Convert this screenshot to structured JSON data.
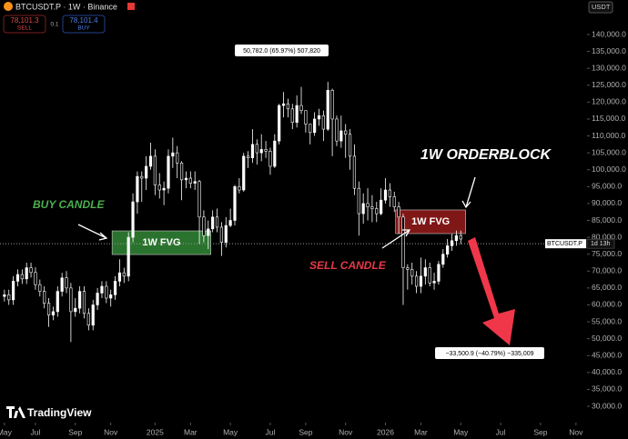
{
  "chart_data": {
    "type": "candlestick",
    "title": "BTCUSDT.P · 1W · Binance",
    "bid": {
      "value": 78101.3,
      "label": "78,101.3",
      "side": "SELL"
    },
    "ask": {
      "value": 78101.4,
      "label": "78,101.4",
      "side": "BUY"
    },
    "spread": "0.1",
    "currency": "USDT",
    "symbol_tag": "BTCUSDT.P",
    "countdown": "1d 13h",
    "brand": "TradingView",
    "candle_color": "#ffffff",
    "candles": {
      "open": [
        62500,
        63000,
        61500,
        67000,
        69000,
        67700,
        71000,
        69600,
        66000,
        64000,
        60500,
        57000,
        58000,
        64000,
        68000,
        65000,
        58000,
        59000,
        64000,
        57500,
        54000,
        60000,
        63500,
        65500,
        62000,
        63000,
        67000,
        69500,
        68500,
        80000,
        90500,
        98000,
        97500,
        101000,
        104000,
        95500,
        94000,
        94500,
        104000,
        105000,
        102000,
        97000,
        97500,
        96000,
        96500,
        86000,
        80500,
        82500,
        86000,
        83000,
        78500,
        83500,
        85000,
        95000,
        94000,
        104000,
        103500,
        107500,
        105000,
        106000,
        105500,
        101000,
        108500,
        119000,
        119500,
        118000,
        114000,
        119000,
        117500,
        113500,
        111000,
        115000,
        116000,
        112000,
        123500,
        115000,
        108500,
        111500,
        110500,
        104000,
        94500,
        87000,
        90000,
        89000,
        88500,
        87000,
        91000,
        94000,
        92000,
        89000,
        86000,
        71000,
        70500,
        68500,
        65500,
        68500,
        71000,
        66500,
        67000,
        72000,
        75000,
        77500,
        79000,
        80500
      ],
      "high": [
        64500,
        64500,
        68500,
        70500,
        70500,
        72500,
        72500,
        71100,
        67500,
        65500,
        62000,
        59500,
        65500,
        69500,
        70000,
        66500,
        62000,
        65500,
        65500,
        59000,
        61500,
        65000,
        67000,
        67000,
        64500,
        68500,
        73500,
        71000,
        81500,
        93000,
        99500,
        99500,
        104000,
        108000,
        106000,
        99000,
        96500,
        106000,
        109500,
        107000,
        102500,
        99500,
        99500,
        99500,
        97000,
        88000,
        85000,
        88000,
        88500,
        84500,
        86000,
        88500,
        95500,
        97500,
        105000,
        105500,
        112000,
        109000,
        110500,
        108500,
        106500,
        110500,
        119500,
        123000,
        121000,
        119500,
        122000,
        124500,
        117500,
        113500,
        117000,
        118000,
        117500,
        126000,
        124000,
        116000,
        116000,
        113500,
        112000,
        107500,
        96500,
        93000,
        94500,
        92500,
        90500,
        94500,
        97500,
        96000,
        93500,
        90500,
        87000,
        72000,
        72500,
        70000,
        74000,
        73500,
        72500,
        69500,
        73000,
        76500,
        79500,
        81000,
        82000,
        82000
      ],
      "low": [
        61000,
        60000,
        60000,
        65500,
        66200,
        66200,
        68100,
        64500,
        62500,
        59000,
        53500,
        55500,
        56500,
        62500,
        63500,
        49000,
        56500,
        57500,
        56000,
        52500,
        52500,
        58500,
        62000,
        60500,
        59500,
        61500,
        65500,
        66500,
        67000,
        78500,
        87000,
        90500,
        94000,
        100000,
        92500,
        91500,
        89500,
        93000,
        100500,
        97500,
        91000,
        94500,
        94500,
        94000,
        78000,
        78500,
        76500,
        81500,
        81500,
        74500,
        77000,
        83000,
        83500,
        93000,
        93500,
        100500,
        102000,
        101500,
        102500,
        103500,
        98500,
        100500,
        107500,
        115500,
        115500,
        112000,
        112500,
        116500,
        111000,
        107500,
        110000,
        113000,
        108500,
        111500,
        104000,
        107000,
        106500,
        103500,
        100000,
        92500,
        80500,
        84000,
        85000,
        84500,
        84500,
        86500,
        90000,
        89000,
        87500,
        81000,
        60000,
        64500,
        66000,
        63500,
        63500,
        66000,
        65500,
        64500,
        66000,
        71000,
        74000,
        76000,
        77500,
        78000
      ],
      "close": [
        63000,
        61500,
        67000,
        69000,
        67700,
        71000,
        69600,
        66000,
        64000,
        60500,
        57000,
        58000,
        64000,
        68000,
        65000,
        58000,
        59000,
        64000,
        57500,
        54000,
        60000,
        63500,
        65500,
        62000,
        63000,
        67000,
        69500,
        68500,
        80000,
        90500,
        98000,
        97500,
        101000,
        104000,
        95500,
        94000,
        94500,
        104000,
        105000,
        102000,
        97000,
        97500,
        96000,
        96500,
        86000,
        80500,
        82500,
        86000,
        83000,
        78500,
        83500,
        85000,
        95000,
        94000,
        104000,
        103500,
        107500,
        105000,
        106000,
        105500,
        101000,
        108500,
        119000,
        119500,
        118000,
        114000,
        119000,
        117500,
        113500,
        111000,
        115000,
        116000,
        112000,
        123500,
        115000,
        108500,
        111500,
        110500,
        104000,
        94500,
        87000,
        90000,
        89000,
        88500,
        87000,
        91000,
        94000,
        92000,
        89000,
        86000,
        71000,
        70500,
        68500,
        65500,
        68500,
        71000,
        66500,
        67000,
        72000,
        75000,
        77500,
        79000,
        80500,
        79500
      ]
    },
    "xlim": [
      -1,
      131.5
    ],
    "xticks": [
      {
        "value": 0,
        "label": "May"
      },
      {
        "value": 7,
        "label": "Jul"
      },
      {
        "value": 16,
        "label": "Sep"
      },
      {
        "value": 24,
        "label": "Nov"
      },
      {
        "value": 34,
        "label": "2025"
      },
      {
        "value": 42,
        "label": "Mar"
      },
      {
        "value": 51,
        "label": "May"
      },
      {
        "value": 60,
        "label": "Jul"
      },
      {
        "value": 68,
        "label": "Sep"
      },
      {
        "value": 77,
        "label": "Nov"
      },
      {
        "value": 86,
        "label": "2026"
      },
      {
        "value": 94,
        "label": "Mar"
      },
      {
        "value": 103,
        "label": "May"
      },
      {
        "value": 112,
        "label": "Jul"
      },
      {
        "value": 121,
        "label": "Sep"
      },
      {
        "value": 129,
        "label": "Nov"
      }
    ],
    "ylim": [
      25160,
      150220
    ],
    "yticks": [
      {
        "value": 30000,
        "label": "30,000.0"
      },
      {
        "value": 35000,
        "label": "35,000.0"
      },
      {
        "value": 40000,
        "label": "40,000.0"
      },
      {
        "value": 45000,
        "label": "45,000.0"
      },
      {
        "value": 50000,
        "label": "50,000.0"
      },
      {
        "value": 55000,
        "label": "55,000.0"
      },
      {
        "value": 60000,
        "label": "60,000.0"
      },
      {
        "value": 65000,
        "label": "65,000.0"
      },
      {
        "value": 70000,
        "label": "70,000.0"
      },
      {
        "value": 75000,
        "label": "75,000.0"
      },
      {
        "value": 80000,
        "label": "80,000.0"
      },
      {
        "value": 85000,
        "label": "85,000.0"
      },
      {
        "value": 90000,
        "label": "90,000.0"
      },
      {
        "value": 95000,
        "label": "95,000.0"
      },
      {
        "value": 100000,
        "label": "100,000.0"
      },
      {
        "value": 105000,
        "label": "105,000.0"
      },
      {
        "value": 110000,
        "label": "110,000.0"
      },
      {
        "value": 115000,
        "label": "115,000.0"
      },
      {
        "value": 120000,
        "label": "120,000.0"
      },
      {
        "value": 125000,
        "label": "125,000.0"
      },
      {
        "value": 130000,
        "label": "130,000.0"
      },
      {
        "value": 135000,
        "label": "135,000.0"
      },
      {
        "value": 140000,
        "label": "140,000.0"
      }
    ],
    "zones": [
      {
        "label": "1W FVG",
        "color": "#2e7d32",
        "x": [
          24.3,
          46.6
        ],
        "y": [
          74900,
          81900
        ]
      },
      {
        "label": "1W FVG",
        "color": "#8b1a1a",
        "x": [
          88.3,
          104.1
        ],
        "y": [
          81100,
          88100
        ]
      }
    ],
    "annotations": {
      "buy": "BUY CANDLE",
      "sell": "SELL CANDLE",
      "orderblock": "1W ORDERBLOCK"
    },
    "measures": [
      "50,782.0 (65.97%) 507,820",
      "−33,500.9 (−40.79%) −335,009"
    ]
  }
}
